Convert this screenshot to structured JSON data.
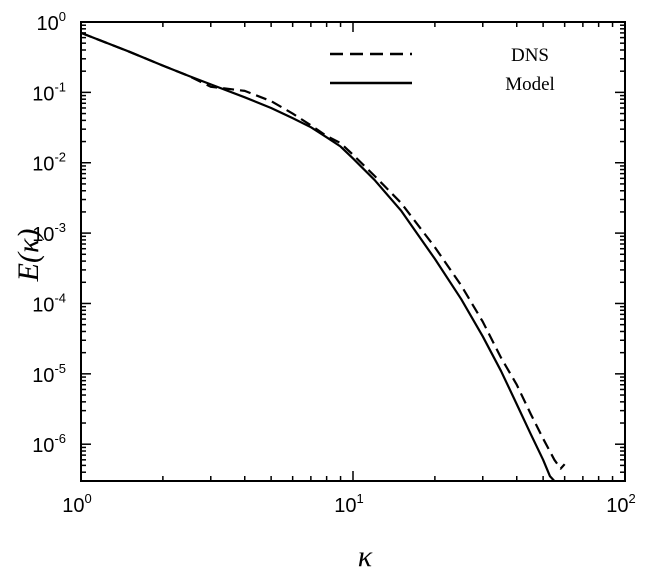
{
  "chart_data": {
    "type": "line",
    "xscale": "log",
    "yscale": "log",
    "xlim": [
      1,
      100
    ],
    "ylim": [
      3e-07,
      1
    ],
    "xlabel": "κ",
    "ylabel": "E(κ)",
    "x_ticks": [
      {
        "value": 1,
        "base": "10",
        "exp": "0"
      },
      {
        "value": 10,
        "base": "10",
        "exp": "1"
      },
      {
        "value": 100,
        "base": "10",
        "exp": "2"
      }
    ],
    "y_ticks": [
      {
        "value": 1,
        "base": "10",
        "exp": "0"
      },
      {
        "value": 0.1,
        "base": "10",
        "exp": "-1"
      },
      {
        "value": 0.01,
        "base": "10",
        "exp": "-2"
      },
      {
        "value": 0.001,
        "base": "10",
        "exp": "-3"
      },
      {
        "value": 0.0001,
        "base": "10",
        "exp": "-4"
      },
      {
        "value": 1e-05,
        "base": "10",
        "exp": "-5"
      },
      {
        "value": 1e-06,
        "base": "10",
        "exp": "-6"
      }
    ],
    "legend_position": "top-right",
    "grid": false,
    "series": [
      {
        "name": "DNS",
        "style": "dashed",
        "color": "#000000",
        "x": [
          1.0,
          1.5,
          2.0,
          2.5,
          3.0,
          4.0,
          5.0,
          6.0,
          7.0,
          8.0,
          9.0,
          10.0,
          12.0,
          15.0,
          20.0,
          25.0,
          30.0,
          35.0,
          40.0,
          45.0,
          50.0,
          55.0,
          58.0,
          60.0
        ],
        "y": [
          0.7,
          0.38,
          0.24,
          0.17,
          0.12,
          0.105,
          0.075,
          0.05,
          0.034,
          0.024,
          0.019,
          0.013,
          0.0065,
          0.0027,
          0.00063,
          0.00018,
          5.5e-05,
          1.7e-05,
          7e-06,
          2.7e-06,
          1.2e-06,
          6e-07,
          4.5e-07,
          5.2e-07
        ]
      },
      {
        "name": "Model",
        "style": "solid",
        "color": "#000000",
        "x": [
          1.0,
          1.5,
          2.0,
          2.5,
          3.0,
          4.0,
          5.0,
          6.0,
          7.0,
          8.0,
          9.0,
          10.0,
          12.0,
          15.0,
          20.0,
          25.0,
          30.0,
          35.0,
          40.0,
          45.0,
          50.0,
          53.0,
          55.0
        ],
        "y": [
          0.7,
          0.38,
          0.24,
          0.17,
          0.13,
          0.085,
          0.06,
          0.043,
          0.032,
          0.023,
          0.017,
          0.0115,
          0.0057,
          0.0021,
          0.00043,
          0.000115,
          3.4e-05,
          1.1e-05,
          3.7e-06,
          1.4e-06,
          6e-07,
          3.5e-07,
          2.5e-07
        ]
      }
    ]
  }
}
